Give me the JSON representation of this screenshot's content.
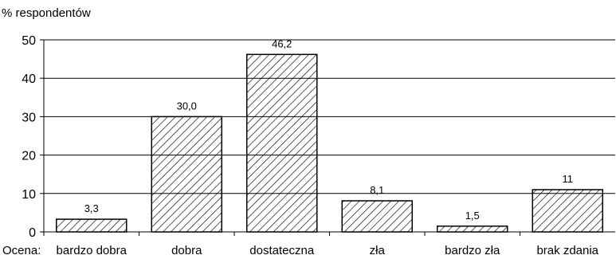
{
  "chart_data": {
    "type": "bar",
    "ylabel": "% respondentów",
    "xaxis_prefix": "Ocena:",
    "categories": [
      "bardzo dobra",
      "dobra",
      "dostateczna",
      "zła",
      "bardzo zła",
      "brak zdania"
    ],
    "values": [
      3.3,
      30.0,
      46.2,
      8.1,
      1.5,
      11
    ],
    "data_labels": [
      "3,3",
      "30,0",
      "46,2",
      "8,1",
      "1,5",
      "11"
    ],
    "ylim": [
      0,
      50
    ],
    "yticks": [
      "0",
      "10",
      "20",
      "30",
      "40",
      "50"
    ],
    "grid": true,
    "bar_fill": "diagonal hatch",
    "colors": {
      "bar_stroke": "#000000",
      "hatch": "#000000",
      "grid": "#000000",
      "background": "#ffffff"
    }
  }
}
